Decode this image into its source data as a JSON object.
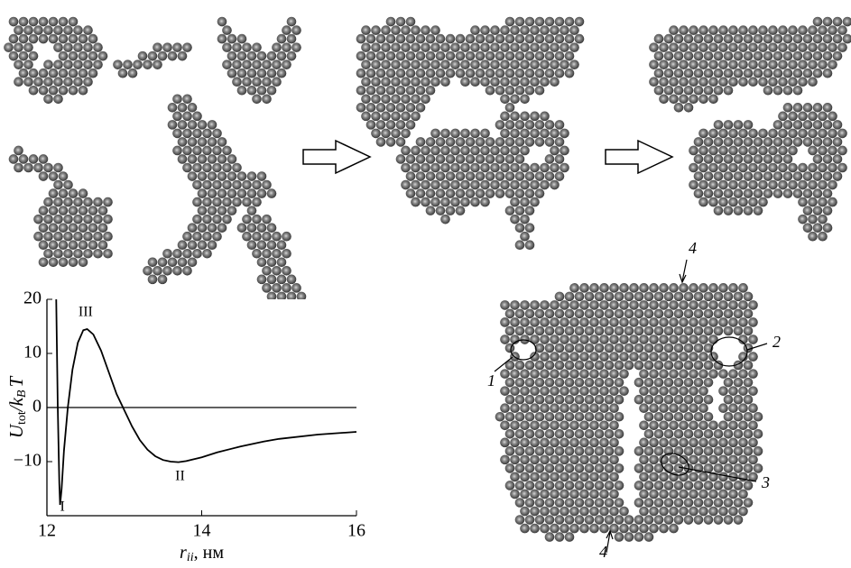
{
  "image_labels": [
    "1",
    "2",
    "3",
    "4",
    "4"
  ],
  "chart_data": {
    "type": "line",
    "x": [
      12.12,
      12.14,
      12.16,
      12.17,
      12.19,
      12.22,
      12.27,
      12.33,
      12.4,
      12.47,
      12.52,
      12.6,
      12.7,
      12.8,
      12.9,
      13.0,
      13.1,
      13.2,
      13.3,
      13.4,
      13.5,
      13.6,
      13.7,
      13.8,
      14.0,
      14.2,
      14.5,
      14.8,
      15.0,
      15.5,
      16.0
    ],
    "series": [
      {
        "color": "#000000",
        "values": [
          20,
          0,
          -14,
          -18,
          -15,
          -8,
          0,
          7,
          12,
          14.3,
          14.5,
          13.5,
          10.5,
          6.5,
          2.5,
          -0.5,
          -3.5,
          -6,
          -7.8,
          -9,
          -9.7,
          -10,
          -10.1,
          -9.9,
          -9.2,
          -8.3,
          -7.2,
          -6.3,
          -5.8,
          -5,
          -4.5
        ]
      }
    ],
    "xlim": [
      12,
      16
    ],
    "ylim": [
      -20,
      20
    ],
    "xticks": [
      12,
      14,
      16
    ],
    "yticks": [
      20,
      10,
      0,
      {
        "value": -10,
        "label": "−10"
      }
    ],
    "xlabel": {
      "symbol": "r",
      "sub": "ii",
      "unit": ", нм"
    },
    "ylabel": {
      "symbol": "U",
      "sub": "tot",
      "mid": "/k",
      "sub2": "B",
      "end": "T"
    },
    "annotations": [
      {
        "text": "I",
        "x": 12.2,
        "y": -18.5
      },
      {
        "text": "II",
        "x": 13.72,
        "y": -12.8
      },
      {
        "text": "III",
        "x": 12.5,
        "y": 17.5
      }
    ]
  }
}
